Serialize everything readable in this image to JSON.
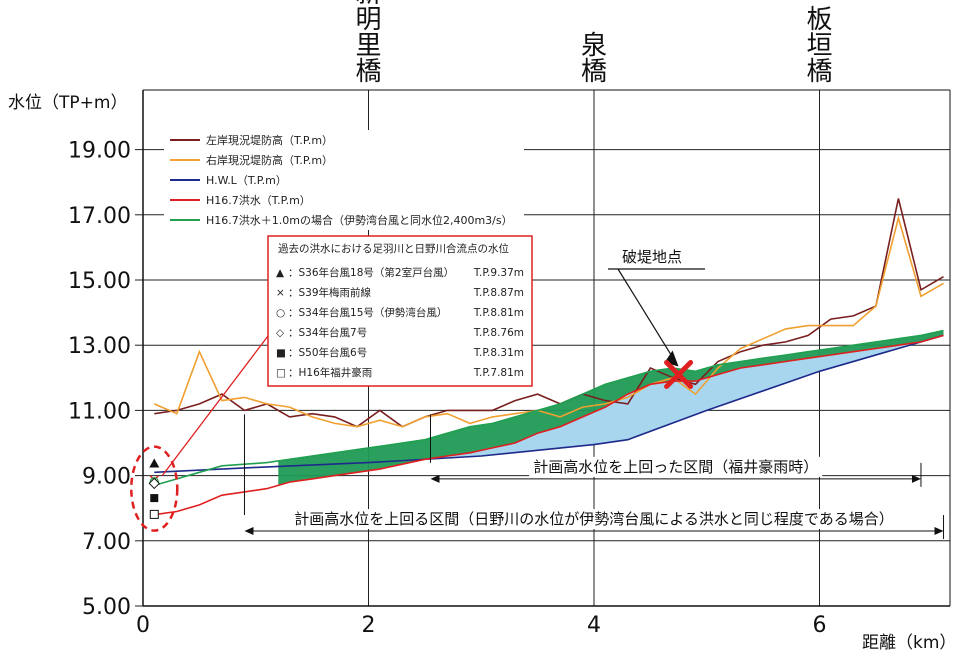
{
  "chart_data": {
    "type": "line",
    "xlabel": "距離（km）",
    "ylabel": "水位（TP+m）",
    "xlim": [
      0,
      7.2
    ],
    "ylim": [
      5.0,
      20.5
    ],
    "x_ticks": [
      0,
      2,
      4,
      6
    ],
    "y_ticks": [
      "5.00",
      "7.00",
      "9.00",
      "11.00",
      "13.00",
      "15.00",
      "17.00",
      "19.00"
    ],
    "grid": true,
    "bridges": [
      {
        "name": "新明里橋",
        "x": 2.0
      },
      {
        "name": "泉橋",
        "x": 4.0
      },
      {
        "name": "板垣橋",
        "x": 6.0
      }
    ],
    "series": [
      {
        "name": "左岸現況堤防高（T.P.m）",
        "color": "#7a1f1f",
        "x": [
          0.1,
          0.3,
          0.5,
          0.7,
          0.9,
          1.1,
          1.3,
          1.5,
          1.7,
          1.9,
          2.1,
          2.3,
          2.5,
          2.7,
          2.9,
          3.1,
          3.3,
          3.5,
          3.7,
          3.9,
          4.1,
          4.3,
          4.5,
          4.7,
          4.9,
          5.1,
          5.3,
          5.5,
          5.7,
          5.9,
          6.1,
          6.3,
          6.5,
          6.7,
          6.9,
          7.1
        ],
        "y": [
          10.9,
          11.0,
          11.2,
          11.5,
          11.0,
          11.2,
          10.8,
          10.9,
          10.8,
          10.5,
          11.0,
          10.5,
          10.8,
          11.0,
          11.0,
          11.0,
          11.3,
          11.5,
          11.2,
          11.5,
          11.3,
          11.2,
          12.3,
          12.0,
          11.8,
          12.5,
          12.8,
          13.0,
          13.1,
          13.3,
          13.8,
          13.9,
          14.2,
          17.5,
          14.7,
          15.1
        ]
      },
      {
        "name": "右岸現況堤防高（T.P.m）",
        "color": "#f0a030",
        "x": [
          0.1,
          0.3,
          0.5,
          0.7,
          0.9,
          1.1,
          1.3,
          1.5,
          1.7,
          1.9,
          2.1,
          2.3,
          2.5,
          2.7,
          2.9,
          3.1,
          3.3,
          3.5,
          3.7,
          3.9,
          4.1,
          4.3,
          4.5,
          4.7,
          4.9,
          5.1,
          5.3,
          5.5,
          5.7,
          5.9,
          6.1,
          6.3,
          6.5,
          6.7,
          6.9,
          7.1
        ],
        "y": [
          11.2,
          10.9,
          12.8,
          11.3,
          11.4,
          11.2,
          11.1,
          10.8,
          10.6,
          10.5,
          10.7,
          10.5,
          10.8,
          10.9,
          10.6,
          10.8,
          10.9,
          11.0,
          10.8,
          11.1,
          11.2,
          11.4,
          11.8,
          12.0,
          11.5,
          12.3,
          12.9,
          13.2,
          13.5,
          13.6,
          13.6,
          13.6,
          14.2,
          16.9,
          14.5,
          14.9
        ]
      },
      {
        "name": "H.W.L（T.P.m）",
        "color": "#1e2a8a",
        "x": [
          0.1,
          1.0,
          2.0,
          3.0,
          4.0,
          4.3,
          5.0,
          6.0,
          7.1
        ],
        "y": [
          9.1,
          9.25,
          9.4,
          9.6,
          9.95,
          10.1,
          11.0,
          12.2,
          13.3
        ]
      },
      {
        "name": "H16.7洪水（T.P.m）",
        "color": "#e02020",
        "x": [
          0.1,
          0.3,
          0.5,
          0.7,
          0.9,
          1.1,
          1.3,
          1.5,
          1.7,
          1.9,
          2.1,
          2.3,
          2.5,
          2.7,
          2.9,
          3.1,
          3.3,
          3.5,
          3.7,
          3.9,
          4.1,
          4.3,
          4.5,
          4.7,
          4.9,
          5.1,
          5.3,
          5.5,
          5.7,
          5.9,
          6.1,
          6.3,
          6.5,
          6.7,
          6.9,
          7.1
        ],
        "y": [
          7.8,
          7.9,
          8.1,
          8.4,
          8.5,
          8.6,
          8.8,
          8.9,
          9.0,
          9.1,
          9.2,
          9.35,
          9.5,
          9.6,
          9.7,
          9.85,
          10.0,
          10.3,
          10.5,
          10.8,
          11.1,
          11.5,
          11.8,
          11.9,
          11.9,
          12.1,
          12.3,
          12.4,
          12.5,
          12.6,
          12.7,
          12.8,
          12.9,
          13.0,
          13.1,
          13.3
        ]
      },
      {
        "name": "H16.7洪水＋1.0mの場合（伊勢湾台風と同水位2,400m3/s）",
        "color": "#20a050",
        "x": [
          0.1,
          0.3,
          0.5,
          0.7,
          0.9,
          1.1,
          1.3,
          1.5,
          1.7,
          1.9,
          2.1,
          2.3,
          2.5,
          2.7,
          2.9,
          3.1,
          3.3,
          3.5,
          3.7,
          3.9,
          4.1,
          4.3,
          4.5,
          4.7,
          4.9,
          5.1,
          5.3,
          5.5,
          5.7,
          5.9,
          6.1,
          6.3,
          6.5,
          6.7,
          6.9,
          7.1
        ],
        "y": [
          8.7,
          8.9,
          9.1,
          9.3,
          9.35,
          9.4,
          9.5,
          9.6,
          9.7,
          9.8,
          9.9,
          10.0,
          10.1,
          10.3,
          10.5,
          10.6,
          10.8,
          11.0,
          11.2,
          11.5,
          11.8,
          12.0,
          12.2,
          12.3,
          12.2,
          12.4,
          12.5,
          12.6,
          12.7,
          12.8,
          12.9,
          13.0,
          13.1,
          13.2,
          13.3,
          13.45
        ]
      }
    ],
    "events_box": {
      "title": "過去の洪水における足羽川と日野川合流点の水位",
      "items": [
        {
          "marker": "▲",
          "label": "：S36年台風18号（第2室戸台風）",
          "value": "T.P.9.37m",
          "y": 9.37,
          "color": "#111111"
        },
        {
          "marker": "×",
          "label": "：S39年梅雨前線",
          "value": "T.P.8.87m",
          "y": 8.87,
          "color": "#e02020"
        },
        {
          "marker": "○",
          "label": "：S34年台風15号（伊勢湾台風）",
          "value": "T.P.8.81m",
          "y": 8.81,
          "color": "#20a050"
        },
        {
          "marker": "◇",
          "label": "：S34年台風7号",
          "value": "T.P.8.76m",
          "y": 8.76,
          "color": "#111111"
        },
        {
          "marker": "■",
          "label": "：S50年台風6号",
          "value": "T.P.8.31m",
          "y": 8.31,
          "color": "#111111"
        },
        {
          "marker": "□",
          "label": "：H16年福井豪雨",
          "value": "T.P.7.81m",
          "y": 7.81,
          "color": "#111111"
        }
      ]
    },
    "breach": {
      "label": "破堤地点",
      "x": 4.75,
      "y": 12.1
    },
    "ranges": [
      {
        "label": "計画高水位を上回った区間（福井豪雨時）",
        "x1": 2.55,
        "x2": 6.9,
        "y": 8.9
      },
      {
        "label": "計画高水位を上回る区間（日野川の水位が伊勢湾台風による洪水と同じ程度である場合）",
        "x1": 0.9,
        "x2": 7.1,
        "y": 7.3
      }
    ],
    "colors": {
      "green_fill": "#1f9a55",
      "blue_fill": "#a8d6ef",
      "red_box": "#e02020",
      "dashed_oval": "#e02020"
    }
  }
}
